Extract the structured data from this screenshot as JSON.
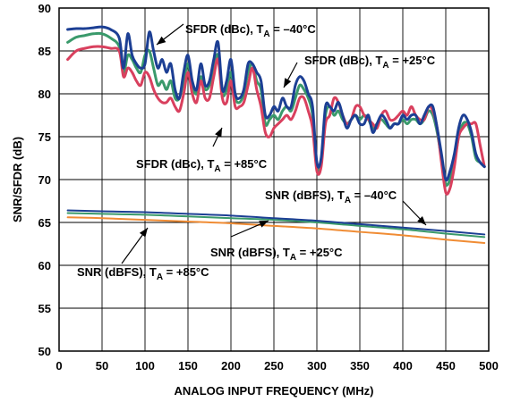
{
  "chart_data": {
    "type": "line",
    "title": "",
    "xlabel": "ANALOG INPUT FREQUENCY (MHz)",
    "ylabel": "SNR/SFDR (dB)",
    "xlim": [
      0,
      500
    ],
    "ylim": [
      50,
      90
    ],
    "xticks": [
      "0",
      "50",
      "100",
      "150",
      "200",
      "250",
      "300",
      "350",
      "400",
      "450",
      "500"
    ],
    "yticks": [
      "50",
      "55",
      "60",
      "65",
      "70",
      "75",
      "80",
      "85",
      "90"
    ],
    "grid": true,
    "series": [
      {
        "name": "SFDR (dBc), TA = –40°C",
        "color": "#1c3f94",
        "x": [
          10,
          20,
          30,
          40,
          50,
          60,
          70,
          75,
          80,
          85,
          90,
          95,
          100,
          105,
          110,
          115,
          120,
          125,
          130,
          135,
          140,
          145,
          150,
          155,
          160,
          165,
          170,
          175,
          180,
          185,
          190,
          195,
          200,
          205,
          210,
          215,
          220,
          225,
          230,
          235,
          240,
          245,
          250,
          255,
          260,
          265,
          270,
          275,
          280,
          285,
          290,
          295,
          300,
          305,
          310,
          315,
          320,
          325,
          330,
          335,
          340,
          345,
          350,
          355,
          360,
          365,
          370,
          375,
          380,
          385,
          390,
          395,
          400,
          405,
          410,
          415,
          420,
          425,
          430,
          435,
          440,
          445,
          450,
          455,
          460,
          465,
          470,
          475,
          480,
          485,
          490,
          495
        ],
        "y": [
          87.5,
          87.6,
          87.6,
          87.7,
          87.8,
          87.5,
          86.5,
          83.0,
          87.0,
          84.5,
          83.5,
          83.0,
          83.5,
          87.2,
          85.0,
          83.0,
          84.0,
          82.5,
          83.5,
          80.5,
          79.5,
          82.5,
          84.5,
          81.5,
          80.5,
          83.5,
          81.0,
          81.5,
          84.0,
          86.0,
          80.5,
          81.5,
          84.0,
          80.0,
          79.5,
          80.5,
          83.5,
          83.5,
          82.5,
          81.5,
          77.5,
          77.5,
          78.5,
          78.0,
          79.5,
          78.5,
          78.5,
          81.0,
          82.0,
          81.5,
          80.0,
          78.5,
          72.0,
          72.5,
          78.5,
          78.5,
          78.0,
          79.0,
          77.5,
          76.0,
          77.0,
          77.5,
          76.5,
          76.5,
          77.5,
          75.5,
          76.5,
          77.5,
          77.0,
          76.0,
          76.5,
          76.5,
          77.5,
          77.0,
          77.5,
          77.5,
          76.5,
          77.5,
          78.5,
          78.5,
          76.0,
          73.0,
          70.0,
          71.0,
          73.0,
          76.0,
          77.5,
          77.0,
          75.5,
          73.0,
          72.0,
          71.5
        ]
      },
      {
        "name": "SFDR (dBc), TA = +25°C",
        "color": "#3a9a6b",
        "x": [
          10,
          20,
          30,
          40,
          50,
          60,
          70,
          75,
          80,
          85,
          90,
          95,
          100,
          105,
          110,
          115,
          120,
          125,
          130,
          135,
          140,
          145,
          150,
          155,
          160,
          165,
          170,
          175,
          180,
          185,
          190,
          195,
          200,
          205,
          210,
          215,
          220,
          225,
          230,
          235,
          240,
          245,
          250,
          255,
          260,
          265,
          270,
          275,
          280,
          285,
          290,
          295,
          300,
          305,
          310,
          315,
          320,
          325,
          330,
          335,
          340,
          345,
          350,
          355,
          360,
          365,
          370,
          375,
          380,
          385,
          390,
          395,
          400,
          405,
          410,
          415,
          420,
          425,
          430,
          435,
          440,
          445,
          450,
          455,
          460,
          465,
          470,
          475,
          480,
          485,
          490,
          495
        ],
        "y": [
          86.0,
          86.6,
          86.8,
          87.0,
          87.0,
          86.5,
          85.5,
          82.5,
          84.5,
          84.0,
          83.0,
          82.5,
          84.5,
          85.0,
          83.0,
          81.0,
          81.5,
          80.5,
          81.5,
          79.5,
          79.5,
          81.5,
          83.5,
          81.0,
          80.0,
          82.0,
          80.5,
          81.0,
          83.0,
          84.5,
          80.0,
          80.5,
          82.5,
          79.5,
          79.0,
          80.0,
          82.5,
          83.5,
          81.5,
          80.5,
          76.5,
          77.0,
          77.5,
          77.0,
          78.0,
          78.5,
          78.0,
          79.5,
          81.0,
          80.5,
          79.5,
          77.5,
          71.5,
          72.0,
          77.5,
          78.5,
          77.5,
          78.0,
          77.0,
          76.5,
          77.0,
          77.5,
          77.0,
          77.5,
          77.0,
          76.0,
          76.5,
          77.0,
          76.5,
          76.0,
          76.5,
          76.5,
          77.0,
          76.5,
          77.0,
          77.0,
          76.5,
          77.0,
          78.0,
          77.5,
          75.5,
          72.5,
          69.5,
          70.0,
          72.0,
          75.0,
          76.5,
          76.5,
          75.0,
          72.5,
          72.0,
          71.5
        ]
      },
      {
        "name": "SFDR (dBc), TA = +85°C",
        "color": "#d9405e",
        "x": [
          10,
          20,
          30,
          40,
          50,
          60,
          70,
          75,
          80,
          85,
          90,
          95,
          100,
          105,
          110,
          115,
          120,
          125,
          130,
          135,
          140,
          145,
          150,
          155,
          160,
          165,
          170,
          175,
          180,
          185,
          190,
          195,
          200,
          205,
          210,
          215,
          220,
          225,
          230,
          235,
          240,
          245,
          250,
          255,
          260,
          265,
          270,
          275,
          280,
          285,
          290,
          295,
          300,
          305,
          310,
          315,
          320,
          325,
          330,
          335,
          340,
          345,
          350,
          355,
          360,
          365,
          370,
          375,
          380,
          385,
          390,
          395,
          400,
          405,
          410,
          415,
          420,
          425,
          430,
          435,
          440,
          445,
          450,
          455,
          460,
          465,
          470,
          475,
          480,
          485,
          490,
          495
        ],
        "y": [
          84.0,
          85.0,
          85.3,
          85.5,
          85.5,
          85.3,
          85.0,
          82.0,
          83.0,
          82.5,
          81.5,
          81.0,
          82.5,
          82.0,
          80.5,
          79.5,
          79.0,
          79.0,
          79.5,
          78.5,
          78.0,
          80.0,
          82.5,
          80.0,
          79.0,
          81.5,
          79.5,
          79.5,
          82.0,
          84.0,
          79.5,
          79.0,
          81.5,
          78.5,
          78.5,
          79.0,
          81.0,
          83.0,
          80.5,
          78.5,
          75.5,
          75.0,
          76.0,
          76.5,
          77.0,
          77.5,
          77.0,
          78.0,
          79.5,
          79.5,
          78.0,
          76.0,
          71.0,
          71.5,
          76.5,
          77.5,
          79.5,
          79.0,
          77.5,
          76.5,
          77.0,
          78.5,
          78.5,
          77.5,
          77.0,
          76.5,
          76.0,
          77.5,
          78.0,
          77.0,
          77.0,
          77.5,
          78.0,
          77.5,
          78.5,
          77.5,
          77.0,
          77.0,
          78.5,
          78.0,
          76.0,
          72.0,
          68.5,
          69.0,
          71.5,
          75.0,
          76.0,
          76.5,
          76.5,
          76.5,
          74.0,
          71.5
        ]
      },
      {
        "name": "SNR (dBFS), TA = –40°C",
        "color": "#1c3f94",
        "x": [
          10,
          50,
          100,
          150,
          200,
          250,
          300,
          350,
          400,
          450,
          495
        ],
        "y": [
          66.4,
          66.3,
          66.2,
          66.0,
          65.8,
          65.5,
          65.2,
          64.8,
          64.4,
          64.0,
          63.6
        ]
      },
      {
        "name": "SNR (dBFS), TA = +25°C",
        "color": "#3a9a6b",
        "x": [
          10,
          50,
          100,
          150,
          200,
          250,
          300,
          350,
          400,
          450,
          495
        ],
        "y": [
          66.1,
          66.0,
          65.9,
          65.7,
          65.5,
          65.3,
          65.0,
          64.6,
          64.2,
          63.7,
          63.3
        ]
      },
      {
        "name": "SNR (dBFS), TA = +85°C",
        "color": "#f08c34",
        "x": [
          10,
          50,
          100,
          150,
          200,
          250,
          300,
          350,
          400,
          450,
          495
        ],
        "y": [
          65.6,
          65.5,
          65.3,
          65.1,
          64.9,
          64.6,
          64.3,
          63.9,
          63.5,
          63.0,
          62.6
        ]
      }
    ],
    "annotations": [
      {
        "main": "SFDR (dBc), T",
        "sub": "A",
        "tail": " = –40°C"
      },
      {
        "main": "SFDR (dBc), T",
        "sub": "A",
        "tail": " = +25°C"
      },
      {
        "main": "SFDR (dBc), T",
        "sub": "A",
        "tail": " = +85°C"
      },
      {
        "main": "SNR (dBFS), T",
        "sub": "A",
        "tail": " = –40°C"
      },
      {
        "main": "SNR (dBFS), T",
        "sub": "A",
        "tail": " = +25°C"
      },
      {
        "main": "SNR (dBFS), T",
        "sub": "A",
        "tail": " = +85°C"
      }
    ]
  }
}
